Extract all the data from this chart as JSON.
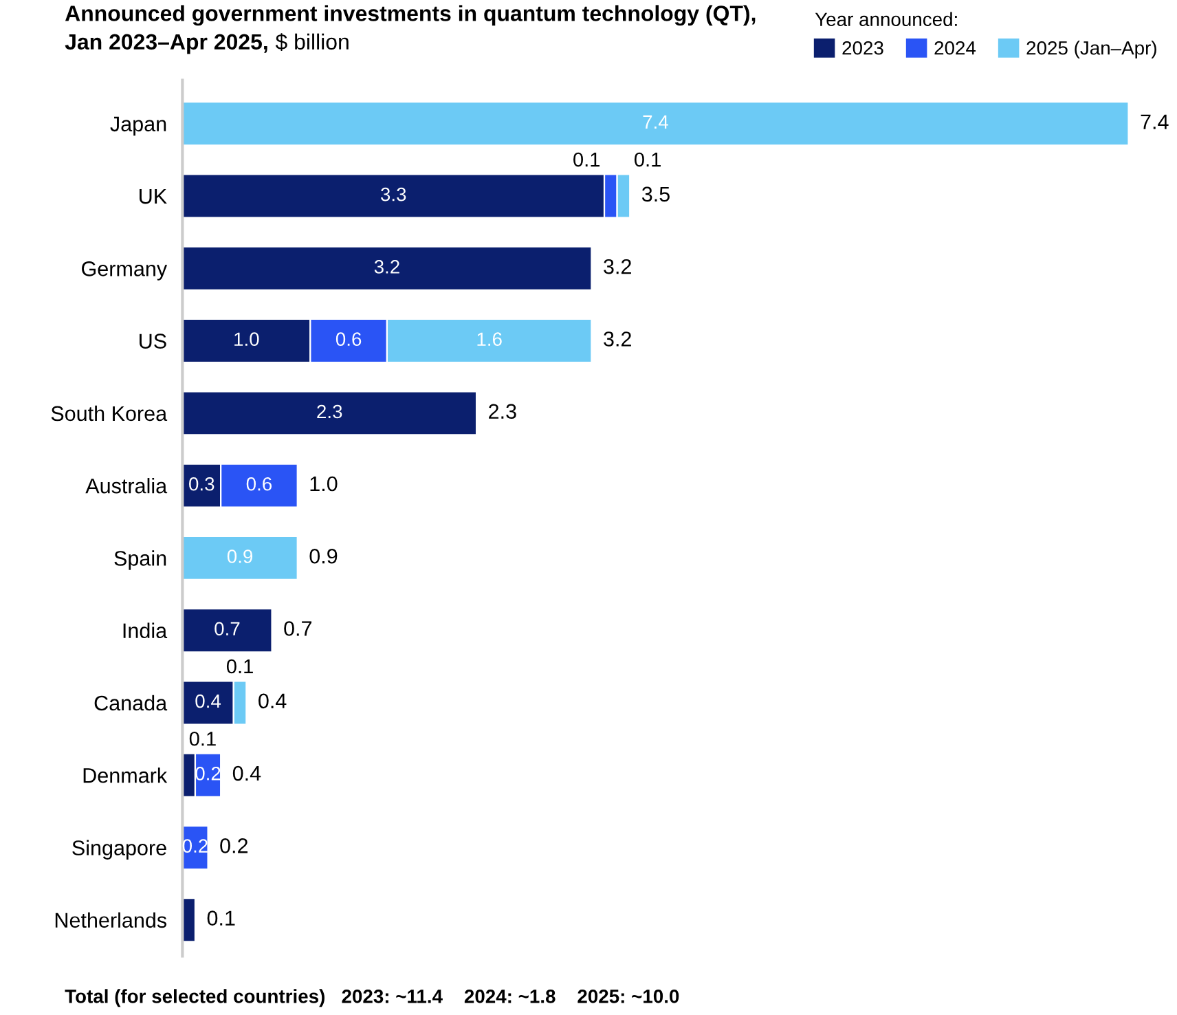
{
  "chart_data": {
    "type": "bar",
    "orientation": "horizontal",
    "stacked": true,
    "title": "Announced government investments in quantum technology (QT),\nJan 2023–Apr 2025,",
    "subtitle": "$ billion",
    "legend_title": "Year announced:",
    "legend": "top right",
    "grid": false,
    "categories": [
      "Japan",
      "UK",
      "Germany",
      "US",
      "South Korea",
      "Australia",
      "Spain",
      "India",
      "Canada",
      "Denmark",
      "Singapore",
      "Netherlands"
    ],
    "series": [
      {
        "name": "2023",
        "color": "#0b1f6e",
        "values": [
          null,
          3.3,
          3.2,
          1.0,
          2.3,
          0.3,
          null,
          0.7,
          0.4,
          0.1,
          null,
          0.1
        ],
        "value_labels": [
          null,
          "3.3",
          "3.2",
          "1.0",
          "2.3",
          "0.3",
          null,
          "0.7",
          "0.4",
          "0.1",
          null,
          null
        ]
      },
      {
        "name": "2024",
        "color": "#2a54f5",
        "values": [
          null,
          0.1,
          null,
          0.6,
          null,
          0.6,
          null,
          null,
          null,
          0.2,
          0.2,
          null
        ],
        "value_labels": [
          null,
          "0.1",
          null,
          "0.6",
          null,
          "0.6",
          null,
          null,
          null,
          "0.2",
          "0.2",
          null
        ]
      },
      {
        "name": "2025 (Jan–Apr)",
        "color": "#6ccaf5",
        "values": [
          7.4,
          0.1,
          null,
          1.6,
          null,
          null,
          0.9,
          null,
          0.1,
          null,
          null,
          null
        ],
        "value_labels": [
          "7.4",
          "0.1",
          null,
          "1.6",
          null,
          null,
          "0.9",
          null,
          "0.1",
          null,
          null,
          null
        ]
      }
    ],
    "totals": [
      "7.4",
      "3.5",
      "3.2",
      "3.2",
      "2.3",
      "1.0",
      "0.9",
      "0.7",
      "0.4",
      "0.4",
      "0.2",
      "0.1"
    ],
    "annotations": [
      "Total (for selected countries)   2023: ~11.4    2024: ~1.8    2025: ~10.0"
    ]
  }
}
